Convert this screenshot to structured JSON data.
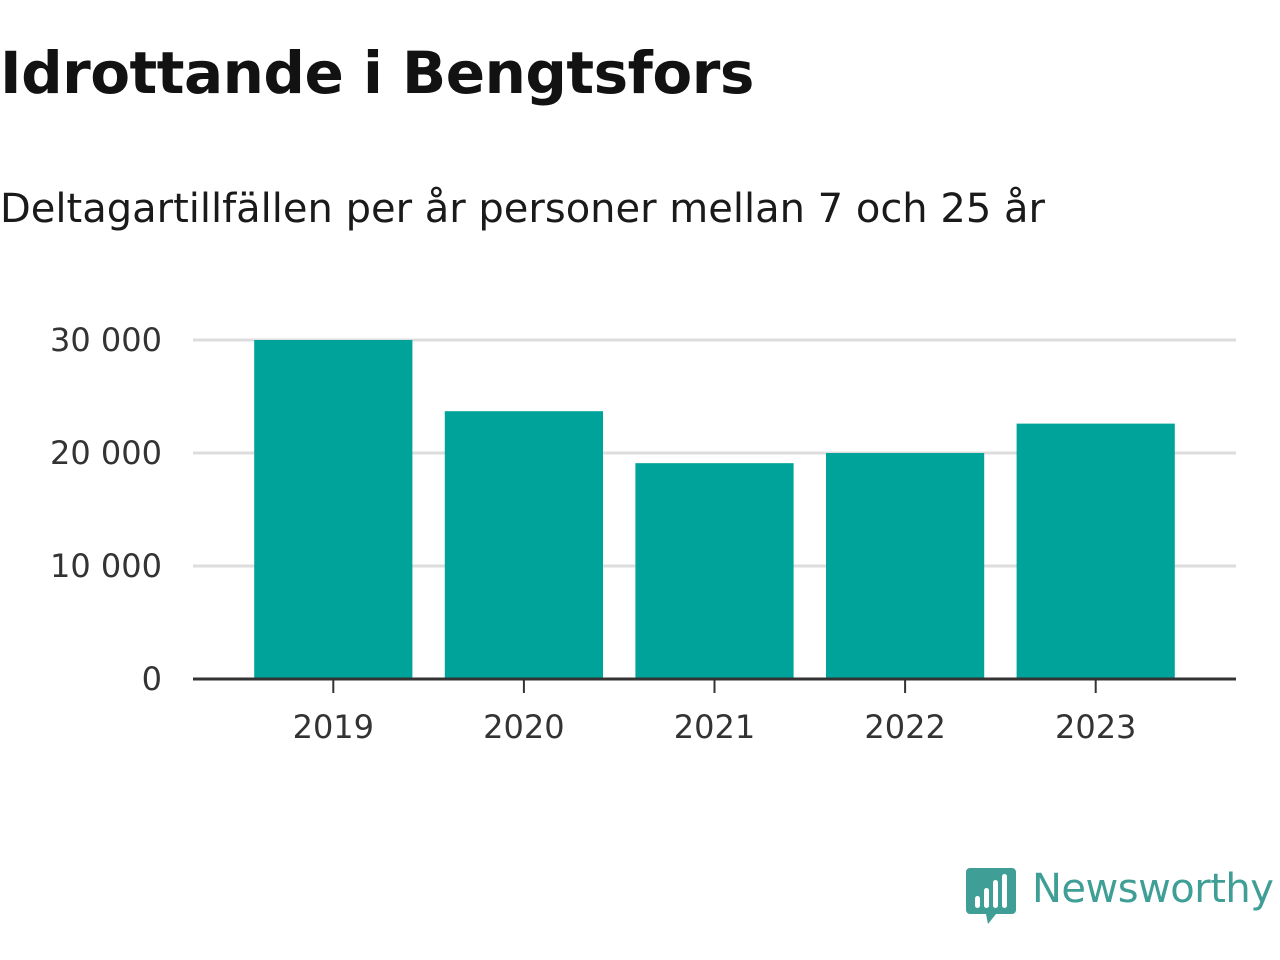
{
  "title": "Idrottande i Bengtsfors",
  "subtitle": "Deltagartillfällen per år personer mellan 7 och 25 år",
  "brand": {
    "name": "Newsworthy",
    "color": "#3f9e95",
    "icon": "bar-chart-speech-bubble-icon"
  },
  "chart_data": {
    "type": "bar",
    "categories": [
      "2019",
      "2020",
      "2021",
      "2022",
      "2023"
    ],
    "values": [
      30000,
      23700,
      19100,
      20000,
      22600
    ],
    "ylim": [
      0,
      30000
    ],
    "yticks": [
      0,
      10000,
      20000,
      30000
    ],
    "ytick_labels": [
      "0",
      "10 000",
      "20 000",
      "30 000"
    ],
    "grid": true,
    "legend": "none",
    "bar_color": "#00a39a",
    "grid_color": "#dddddd",
    "axis_color": "#333333"
  }
}
